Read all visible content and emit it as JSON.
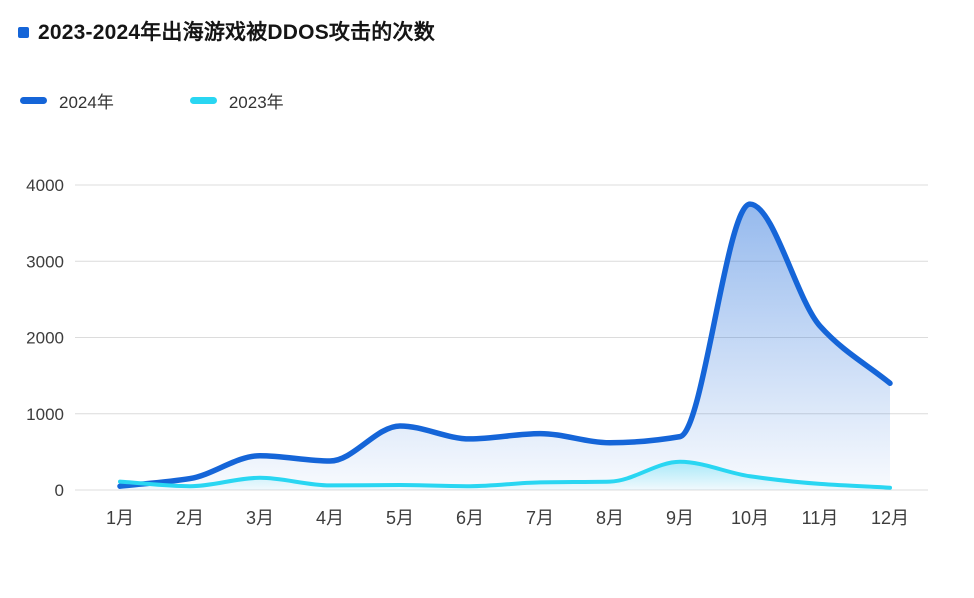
{
  "title": "2023-2024年出海游戏被DDOS攻击的次数",
  "colors": {
    "title_bullet": "#1565d8",
    "axis_label": "#3d3d3d",
    "gridline": "#dcdcdc"
  },
  "chart_data": {
    "type": "line",
    "title": "2023-2024年出海游戏被DDOS攻击的次数",
    "categories": [
      "1月",
      "2月",
      "3月",
      "4月",
      "5月",
      "6月",
      "7月",
      "8月",
      "9月",
      "10月",
      "11月",
      "12月"
    ],
    "series": [
      {
        "name": "2024年",
        "color": "#1565d8",
        "values": [
          50,
          150,
          450,
          380,
          840,
          670,
          740,
          620,
          700,
          3750,
          2150,
          1400
        ]
      },
      {
        "name": "2023年",
        "color": "#29d6f2",
        "values": [
          110,
          50,
          160,
          60,
          65,
          50,
          100,
          110,
          370,
          180,
          80,
          30
        ]
      }
    ],
    "ylim": [
      0,
      4000
    ],
    "yticks": [
      0,
      1000,
      2000,
      3000,
      4000
    ],
    "grid": true,
    "line_style": "smooth",
    "area_fill": "gradient",
    "legend_position": "top-left"
  }
}
